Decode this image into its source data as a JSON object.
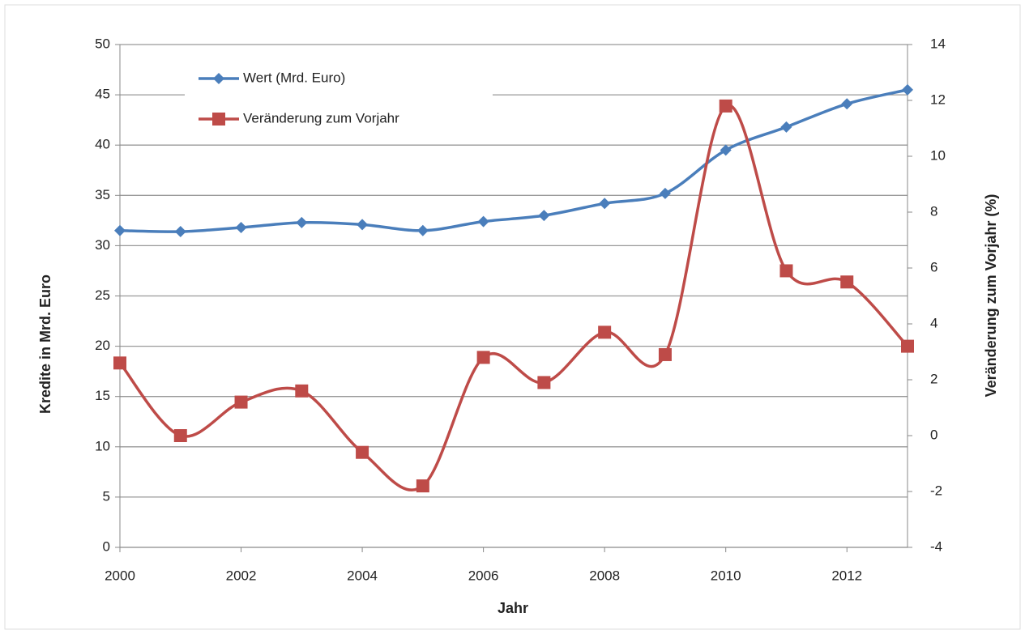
{
  "chart_data": {
    "type": "line",
    "x": [
      2000,
      2001,
      2002,
      2003,
      2004,
      2005,
      2006,
      2007,
      2008,
      2009,
      2010,
      2011,
      2012,
      2013
    ],
    "series": [
      {
        "name": "Wert (Mrd. Euro)",
        "color": "#4a7ebb",
        "values": [
          31.5,
          31.4,
          31.8,
          32.3,
          32.1,
          31.5,
          32.4,
          33.0,
          34.2,
          35.2,
          39.5,
          41.8,
          44.1,
          45.5
        ]
      },
      {
        "name": "Veränderung zum Vorjahr",
        "color": "#be4b48",
        "axis": "y2",
        "values": [
          2.6,
          0.0,
          1.2,
          1.6,
          -0.6,
          -1.8,
          2.8,
          1.9,
          3.7,
          2.9,
          11.8,
          5.9,
          5.5,
          3.2
        ]
      }
    ],
    "x_label": "Jahr",
    "y_label": "Kredite in Mrd. Euro",
    "y2_label": "Veränderung zum Vorjahr (%)",
    "xlim": [
      2000,
      2013
    ],
    "xticks": [
      2000,
      2002,
      2004,
      2006,
      2008,
      2010,
      2012
    ],
    "ylim": [
      0,
      50
    ],
    "yticks": [
      0,
      5,
      10,
      15,
      20,
      25,
      30,
      35,
      40,
      45,
      50
    ],
    "y2lim": [
      -4,
      14
    ],
    "y2ticks": [
      -4,
      -2,
      0,
      2,
      4,
      6,
      8,
      10,
      12,
      14
    ],
    "grid": true,
    "legend": "top-left"
  }
}
